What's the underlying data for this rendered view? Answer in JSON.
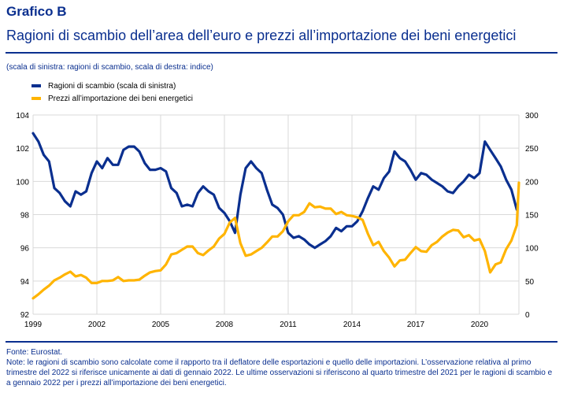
{
  "header": {
    "kicker": "Grafico B",
    "title": "Ragioni di scambio dell’area dell’euro e prezzi all’importazione dei beni energetici",
    "subtitle": "(scala di sinistra: ragioni di scambio, scala di destra: indice)"
  },
  "footer": {
    "source": "Fonte: Eurostat.",
    "note": "Note: le ragioni di scambio sono calcolate come il rapporto tra il deflatore delle esportazioni e quello delle importazioni. L’osservazione relativa al primo trimestre del 2022 si riferisce unicamente ai dati di gennaio 2022. Le ultime osservazioni si riferiscono al quarto trimestre del 2021 per le ragioni di scambio e a gennaio 2022 per i prezzi all’importazione dei beni energetici."
  },
  "chart_data": {
    "type": "line",
    "title": "Ragioni di scambio dell’area dell’euro e prezzi all’importazione dei beni energetici",
    "xlabel": "",
    "ylabel": "ragioni di scambio",
    "y2label": "indice",
    "x_start": 1999.0,
    "x_step": 0.25,
    "xlim": [
      1999.0,
      2022.0
    ],
    "ylim": [
      92,
      104
    ],
    "y2lim": [
      0,
      300
    ],
    "x_ticks": [
      "1999",
      "2002",
      "2005",
      "2008",
      "2011",
      "2014",
      "2017",
      "2020"
    ],
    "x_tick_values": [
      1999,
      2002,
      2005,
      2008,
      2011,
      2014,
      2017,
      2020
    ],
    "y_ticks": [
      "92",
      "94",
      "96",
      "98",
      "100",
      "102",
      "104"
    ],
    "y_tick_values": [
      92,
      94,
      96,
      98,
      100,
      102,
      104
    ],
    "y2_ticks": [
      "0",
      "50",
      "100",
      "150",
      "200",
      "250",
      "300"
    ],
    "y2_tick_values": [
      0,
      50,
      100,
      150,
      200,
      250,
      300
    ],
    "grid": true,
    "legend_position": "top-left",
    "series": [
      {
        "name": "Ragioni di scambio (scala di sinistra)",
        "axis": "left",
        "color": "#0a2f8f",
        "values": [
          102.9,
          102.4,
          101.6,
          101.2,
          99.6,
          99.3,
          98.8,
          98.5,
          99.4,
          99.2,
          99.4,
          100.5,
          101.2,
          100.8,
          101.4,
          101.0,
          101.0,
          101.9,
          102.1,
          102.1,
          101.8,
          101.1,
          100.7,
          100.7,
          100.8,
          100.6,
          99.6,
          99.3,
          98.5,
          98.6,
          98.5,
          99.3,
          99.7,
          99.4,
          99.2,
          98.4,
          98.1,
          97.6,
          96.9,
          99.2,
          100.8,
          101.2,
          100.8,
          100.5,
          99.5,
          98.6,
          98.4,
          98.0,
          96.9,
          96.6,
          96.7,
          96.5,
          96.2,
          96.0,
          96.2,
          96.4,
          96.7,
          97.2,
          97.0,
          97.3,
          97.3,
          97.6,
          98.2,
          99.0,
          99.7,
          99.5,
          100.2,
          100.6,
          101.8,
          101.4,
          101.2,
          100.7,
          100.1,
          100.5,
          100.4,
          100.1,
          99.9,
          99.7,
          99.4,
          99.3,
          99.7,
          100.0,
          100.4,
          100.2,
          100.5,
          102.4,
          101.9,
          101.4,
          100.9,
          100.1,
          99.5,
          98.3
        ]
      },
      {
        "name": "Prezzi all’importazione dei beni energetici",
        "axis": "right",
        "color": "#ffb400",
        "values": [
          24,
          30,
          37,
          43,
          51,
          55,
          60,
          64,
          57,
          59,
          55,
          47,
          47,
          50,
          50,
          51,
          56,
          50,
          51,
          51,
          52,
          58,
          63,
          65,
          66,
          75,
          90,
          92,
          97,
          102,
          102,
          92,
          89,
          96,
          102,
          114,
          121,
          138,
          145,
          107,
          88,
          90,
          95,
          100,
          108,
          117,
          117,
          125,
          140,
          149,
          149,
          154,
          167,
          161,
          162,
          159,
          159,
          151,
          154,
          149,
          148,
          146,
          142,
          121,
          104,
          109,
          95,
          85,
          72,
          81,
          82,
          92,
          101,
          95,
          94,
          104,
          109,
          117,
          123,
          127,
          126,
          116,
          119,
          111,
          113,
          95,
          63,
          75,
          78,
          98,
          111,
          134,
          198
        ]
      }
    ]
  }
}
